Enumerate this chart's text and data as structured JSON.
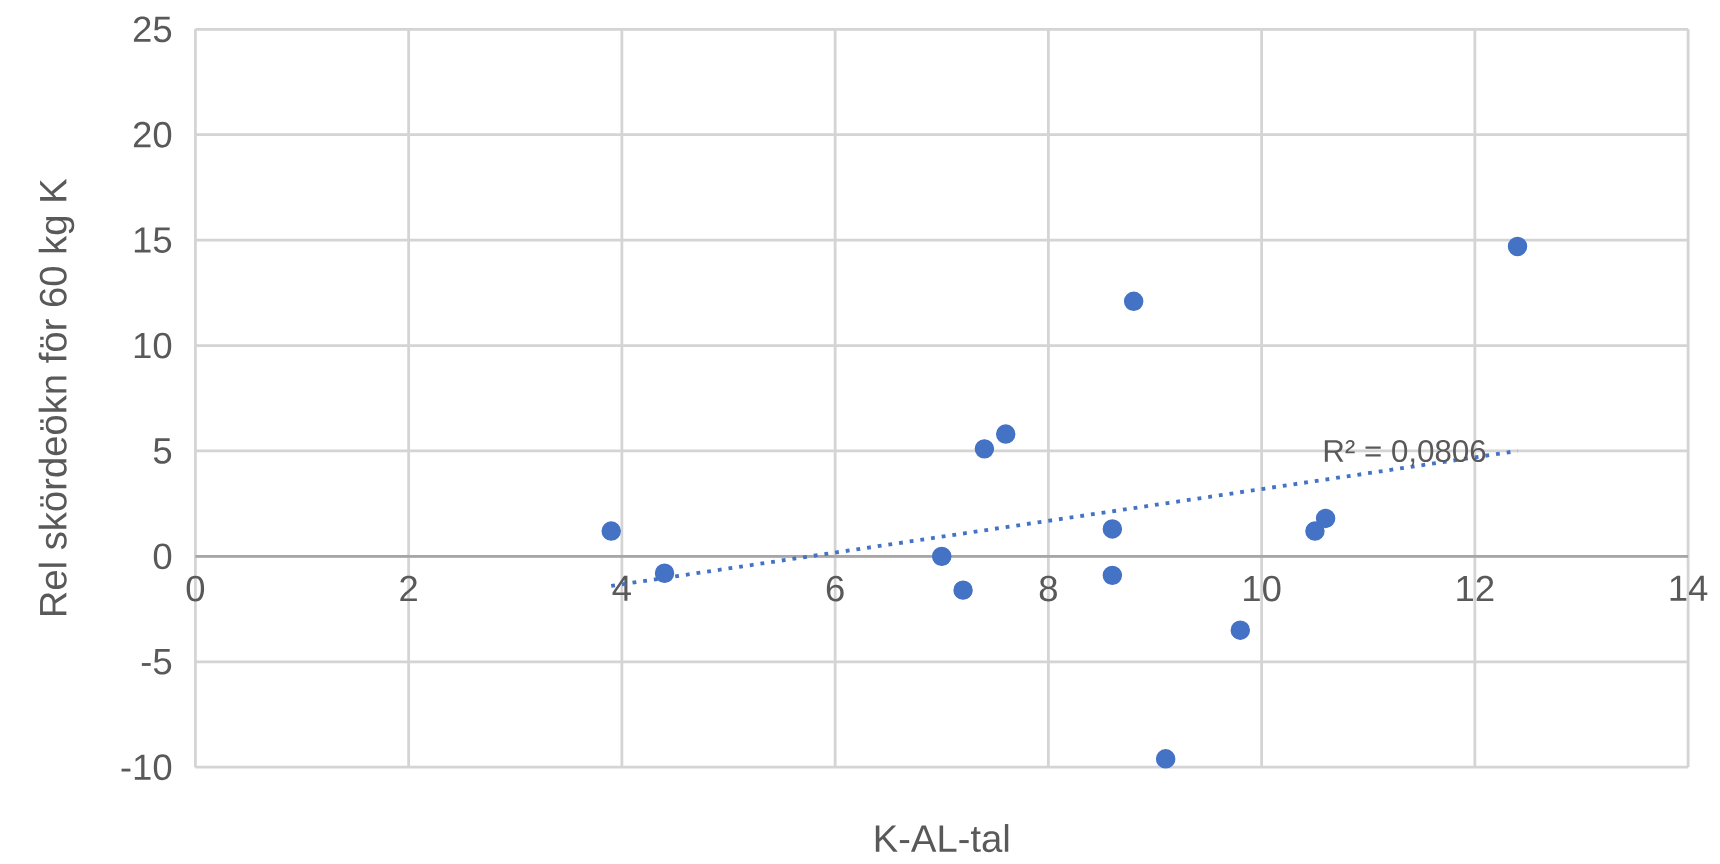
{
  "chart_data": {
    "type": "scatter",
    "xlabel": "K-AL-tal",
    "ylabel": "Rel skördeökn för 60 kg K",
    "xlim": [
      0,
      14
    ],
    "ylim": [
      -10,
      25
    ],
    "xticks": [
      0,
      2,
      4,
      6,
      8,
      10,
      12,
      14
    ],
    "yticks": [
      -10,
      -5,
      0,
      5,
      10,
      15,
      20,
      25
    ],
    "grid": true,
    "series": [
      {
        "color": "#4472c4",
        "marker": "circle",
        "x": [
          3.9,
          4.4,
          7.0,
          7.2,
          7.4,
          7.6,
          8.6,
          8.6,
          8.8,
          9.1,
          9.8,
          10.5,
          10.6,
          12.4
        ],
        "values": [
          1.2,
          -0.8,
          0,
          -1.6,
          5.1,
          5.8,
          1.3,
          -0.9,
          12.1,
          -9.6,
          -3.5,
          1.2,
          1.8,
          14.7
        ]
      },
      {
        "type": "line",
        "color": "#4472c4",
        "line_style": "dotted",
        "marker": "none",
        "x": [
          3.9,
          12.4
        ],
        "values": [
          -1.4,
          5.0
        ]
      }
    ],
    "annotations": [
      "R² = 0,0806"
    ]
  }
}
